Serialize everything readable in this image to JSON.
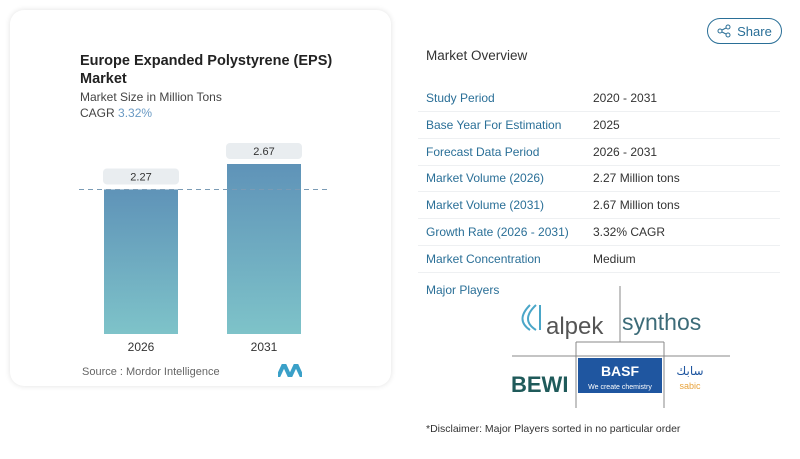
{
  "share_label": "Share",
  "chart_data": {
    "type": "bar",
    "title": "Europe Expanded Polystyrene (EPS) Market",
    "subtitle": "Market Size in Million Tons",
    "cagr_label": "CAGR",
    "cagr_value": "3.32%",
    "categories": [
      "2026",
      "2031"
    ],
    "values": [
      2.27,
      2.67
    ],
    "data_labels": [
      "2.27",
      "2.67"
    ],
    "ylim": [
      0,
      2.67
    ],
    "reference_line": 2.27,
    "colors": {
      "bar_top": "#5f93b8",
      "bar_bottom": "#7ec3c9"
    },
    "source": "Source :  Mordor Intelligence"
  },
  "overview": {
    "title": "Market Overview",
    "rows": [
      {
        "label": "Study Period",
        "value": "2020 - 2031"
      },
      {
        "label": "Base Year For Estimation",
        "value": "2025"
      },
      {
        "label": "Forecast Data Period",
        "value": "2026 - 2031"
      },
      {
        "label": "Market Volume (2026)",
        "value": "2.27 Million tons"
      },
      {
        "label": "Market Volume (2031)",
        "value": "2.67 Million tons"
      },
      {
        "label": "Growth Rate (2026 - 2031)",
        "value": "3.32% CAGR"
      },
      {
        "label": "Market Concentration",
        "value": "Medium"
      }
    ]
  },
  "players": {
    "title": "Major Players",
    "logos": [
      "alpek",
      "synthos",
      "BEWI",
      "BASF",
      "We create chemistry",
      "سابك",
      "sabic"
    ],
    "disclaimer": "*Disclaimer: Major Players sorted in no particular order"
  }
}
